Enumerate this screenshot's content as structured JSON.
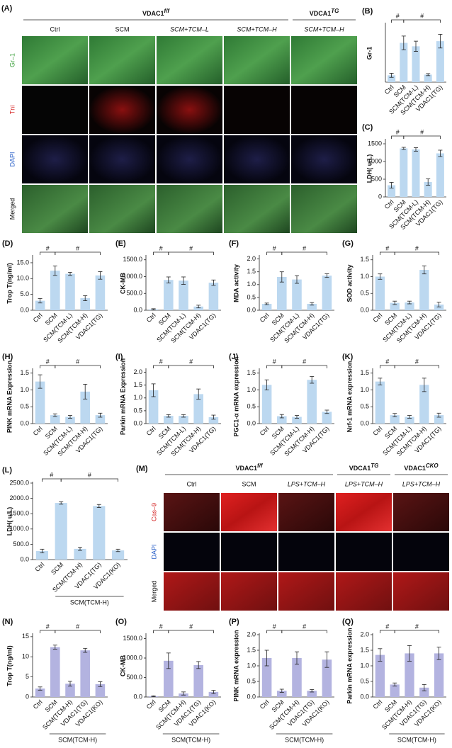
{
  "panels": [
    {
      "label": "(A)",
      "groups": [
        {
          "name": "VDAC1",
          "sup": "f/f"
        },
        {
          "name": "VDCA1",
          "sup": "TG"
        }
      ],
      "columns": [
        "Ctrl",
        "SCM",
        "SCM+TCM–L",
        "SCM+TCM–H",
        "SCM+TCM–H"
      ],
      "rows": [
        "Gr–1",
        "Tni",
        "DAPI",
        "Merged"
      ]
    },
    {
      "label": "(M)",
      "groups": [
        {
          "name": "VDAC1",
          "sup": "f/f"
        },
        {
          "name": "VDCA1",
          "sup": "TG"
        },
        {
          "name": "VDAC1",
          "sup": "CKO"
        }
      ],
      "columns": [
        "Ctrl",
        "SCM",
        "LPS+TCM–H",
        "LPS+TCM–H",
        "LPS+TCM–H"
      ],
      "rows": [
        "Cas–9",
        "DAPI",
        "Merged"
      ]
    }
  ],
  "chart_data": [
    {
      "type": "bar",
      "label": "(B)",
      "ylabel": "Gr-1",
      "categories": [
        "Ctrl",
        "SCM",
        "SCM(TCM-L)",
        "SCM(TCM-H)",
        "VDAC1(TG)"
      ],
      "values": [
        0.2,
        1.15,
        1.05,
        0.22,
        1.2
      ],
      "errors": [
        0.06,
        0.2,
        0.15,
        0.03,
        0.2
      ],
      "ylim": [
        0,
        1.7
      ],
      "annotations": [
        "#",
        "#"
      ],
      "color": "#bcd8f0"
    },
    {
      "type": "bar",
      "label": "(C)",
      "ylabel": "LDH( u/L)",
      "categories": [
        "Ctrl",
        "SCM",
        "SCM(TCM-L)",
        "SCM(TCM-H)",
        "VDAC1(TG)"
      ],
      "values": [
        330,
        1370,
        1340,
        420,
        1230
      ],
      "errors": [
        80,
        30,
        50,
        90,
        90
      ],
      "ylim": [
        0,
        1600
      ],
      "yticks": [
        0,
        500,
        1000,
        1500
      ],
      "annotations": [
        "#",
        "#"
      ],
      "color": "#bcd8f0"
    },
    {
      "type": "bar",
      "label": "(D)",
      "ylabel": "Trop T(ng/ml)",
      "categories": [
        "Ctrl",
        "SCM",
        "SCM(TCM-L)",
        "SCM(TCM-H)",
        "VDAC1(TG)"
      ],
      "values": [
        3,
        12.5,
        11.5,
        3.8,
        11
      ],
      "errors": [
        0.7,
        1.5,
        0.5,
        0.8,
        1.2
      ],
      "ylim": [
        0,
        17
      ],
      "yticks": [
        {
          "value": 0,
          "label": "0.0"
        },
        {
          "value": 5,
          "label": "5.0"
        },
        {
          "value": 10,
          "label": "10.0"
        },
        {
          "value": 15,
          "label": "15.0"
        }
      ],
      "annotations": [
        "#",
        "#"
      ],
      "color": "#bcd8f0"
    },
    {
      "type": "bar",
      "label": "(E)",
      "ylabel": "CK-MB",
      "categories": [
        "Ctrl",
        "SCM",
        "SCM(TCM-L)",
        "SCM(TCM-H)",
        "VDAC1(TG)"
      ],
      "values": [
        30,
        900,
        880,
        110,
        820
      ],
      "errors": [
        15,
        90,
        110,
        40,
        80
      ],
      "ylim": [
        0,
        1600
      ],
      "yticks": [
        {
          "value": 0,
          "label": "0.0"
        },
        {
          "value": 500,
          "label": "500.0"
        },
        {
          "value": 1000,
          "label": "1000.0"
        },
        {
          "value": 1500,
          "label": "1500.0"
        }
      ],
      "annotations": [
        "#",
        "#"
      ],
      "color": "#bcd8f0"
    },
    {
      "type": "bar",
      "label": "(F)",
      "ylabel": "MDA activity",
      "categories": [
        "Ctrl",
        "SCM",
        "SCM(TCM-L)",
        "SCM(TCM-H)",
        "VDAC1(TG)"
      ],
      "values": [
        0.25,
        1.3,
        1.2,
        0.25,
        1.35
      ],
      "errors": [
        0.03,
        0.2,
        0.15,
        0.05,
        0.07
      ],
      "ylim": [
        0,
        2.1
      ],
      "yticks": [
        {
          "value": 0,
          "label": "0.0"
        },
        0.5,
        {
          "value": 1,
          "label": "1.0"
        },
        1.5,
        {
          "value": 2,
          "label": "2.0"
        }
      ],
      "annotations": [
        "#",
        "#"
      ],
      "color": "#bcd8f0"
    },
    {
      "type": "bar",
      "label": "(G)",
      "ylabel": "SOD activity",
      "categories": [
        "Ctrl",
        "SCM",
        "SCM(TCM-L)",
        "SCM(TCM-H)",
        "VDAC1(TG)"
      ],
      "values": [
        1.0,
        0.22,
        0.23,
        1.2,
        0.17
      ],
      "errors": [
        0.08,
        0.05,
        0.04,
        0.12,
        0.07
      ],
      "ylim": [
        0,
        1.6
      ],
      "yticks": [
        {
          "value": 0,
          "label": "0.0"
        },
        0.5,
        {
          "value": 1,
          "label": "1.0"
        },
        1.5
      ],
      "annotations": [
        "#",
        "#"
      ],
      "color": "#bcd8f0"
    },
    {
      "type": "bar",
      "label": "(H)",
      "ylabel": "PINK mRNA Expression",
      "categories": [
        "Ctrl",
        "SCM",
        "SCM(TCM-L)",
        "SCM(TCM-H)",
        "VDAC1(TG)"
      ],
      "values": [
        1.25,
        0.25,
        0.2,
        0.95,
        0.25
      ],
      "errors": [
        0.2,
        0.04,
        0.04,
        0.22,
        0.06
      ],
      "ylim": [
        0,
        1.6
      ],
      "yticks": [
        {
          "value": 0,
          "label": "0.0"
        },
        0.5,
        {
          "value": 1,
          "label": "1.0"
        },
        1.5
      ],
      "annotations": [
        "#",
        "#"
      ],
      "color": "#bcd8f0"
    },
    {
      "type": "bar",
      "label": "(I)",
      "ylabel": "Parkin mRNA Expression",
      "categories": [
        "Ctrl",
        "SCM",
        "SCM(TCM-L)",
        "SCM(TCM-H)",
        "VDAC1(TG)"
      ],
      "values": [
        1.3,
        0.3,
        0.3,
        1.15,
        0.25
      ],
      "errors": [
        0.25,
        0.05,
        0.05,
        0.2,
        0.08
      ],
      "ylim": [
        0,
        2.1
      ],
      "yticks": [
        {
          "value": 0,
          "label": "0.0"
        },
        0.5,
        {
          "value": 1,
          "label": "1.0"
        },
        1.5,
        {
          "value": 2,
          "label": "2.0"
        }
      ],
      "annotations": [
        "#",
        "#"
      ],
      "color": "#bcd8f0"
    },
    {
      "type": "bar",
      "label": "(J)",
      "ylabel": "PGC1-α mRNA expression",
      "categories": [
        "Ctrl",
        "SCM",
        "SCM(TCM-L)",
        "SCM(TCM-H)",
        "VDAC1(TG)"
      ],
      "values": [
        1.15,
        0.22,
        0.2,
        1.3,
        0.35
      ],
      "errors": [
        0.15,
        0.05,
        0.04,
        0.1,
        0.05
      ],
      "ylim": [
        0,
        1.6
      ],
      "yticks": [
        {
          "value": 0,
          "label": "0.0"
        },
        0.5,
        {
          "value": 1,
          "label": "1.0"
        },
        1.5
      ],
      "annotations": [
        "#",
        "#"
      ],
      "color": "#bcd8f0"
    },
    {
      "type": "bar",
      "label": "(K)",
      "ylabel": "Nrf-1 mRNA expression",
      "categories": [
        "Ctrl",
        "SCM",
        "SCM(TCM-L)",
        "SCM(TCM-H)",
        "VDAC1(TG)"
      ],
      "values": [
        1.25,
        0.25,
        0.2,
        1.15,
        0.25
      ],
      "errors": [
        0.1,
        0.05,
        0.04,
        0.2,
        0.06
      ],
      "ylim": [
        0,
        1.6
      ],
      "yticks": [
        {
          "value": 0,
          "label": "0.0"
        },
        0.5,
        {
          "value": 1,
          "label": "1.0"
        },
        1.5
      ],
      "annotations": [
        "#",
        "#"
      ],
      "color": "#bcd8f0"
    },
    {
      "type": "bar",
      "label": "(L)",
      "ylabel": "LDH( u/L)",
      "categories": [
        "Ctrl",
        "SCM",
        "SCM(TCM-H)",
        "VDAC1(TG)",
        "VDAC1(KO)"
      ],
      "group_label": "SCM(TCM-H)",
      "values": [
        280,
        1850,
        350,
        1750,
        300
      ],
      "errors": [
        60,
        40,
        50,
        50,
        40
      ],
      "ylim": [
        0,
        2500
      ],
      "yticks": [
        {
          "value": 0,
          "label": "0.0"
        },
        {
          "value": 500,
          "label": "500.0"
        },
        {
          "value": 1000,
          "label": "1000.0"
        },
        {
          "value": 1500,
          "label": "1500.0"
        },
        {
          "value": 2000,
          "label": "2000.0"
        },
        {
          "value": 2500,
          "label": "2500.0"
        }
      ],
      "annotations": [
        "#",
        "#"
      ],
      "color": "#bcd8f0"
    },
    {
      "type": "bar",
      "label": "(N)",
      "ylabel": "Trop T(ng/ml)",
      "categories": [
        "Ctrl",
        "SCM",
        "SCM(TCM-H)",
        "VDAC1(TG)",
        "VDAC1(KO)"
      ],
      "group_label": "SCM(TCM-H)",
      "values": [
        2.1,
        12.4,
        3.3,
        11.6,
        3.2
      ],
      "errors": [
        0.4,
        0.5,
        0.6,
        0.5,
        0.6
      ],
      "ylim": [
        0,
        15.5
      ],
      "yticks": [
        0,
        5,
        10,
        15
      ],
      "annotations": [
        "#",
        "#"
      ],
      "color": "#b3b3e0"
    },
    {
      "type": "bar",
      "label": "(O)",
      "ylabel": "CK-MB",
      "categories": [
        "Ctrl",
        "SCM",
        "SCM(TCM-H)",
        "VDAC1(TG)",
        "VDAC1(KO)"
      ],
      "group_label": "SCM(TCM-H)",
      "values": [
        20,
        930,
        90,
        820,
        130
      ],
      "errors": [
        10,
        200,
        40,
        90,
        40
      ],
      "ylim": [
        0,
        1600
      ],
      "yticks": [
        {
          "value": 0,
          "label": "0.0"
        },
        {
          "value": 500,
          "label": "500.0"
        },
        {
          "value": 1000,
          "label": "1000.0"
        },
        {
          "value": 1500,
          "label": "1500.0"
        }
      ],
      "annotations": [
        "#",
        "#"
      ],
      "color": "#b3b3e0"
    },
    {
      "type": "bar",
      "label": "(P)",
      "ylabel": "PINK mRNA expression",
      "categories": [
        "Ctrl",
        "SCM",
        "SCM(TCM-H)",
        "VDAC1(TG)",
        "VDAC1(KO)"
      ],
      "group_label": "SCM(TCM-H)",
      "values": [
        1.25,
        0.2,
        1.25,
        0.2,
        1.2
      ],
      "errors": [
        0.25,
        0.05,
        0.2,
        0.04,
        0.25
      ],
      "ylim": [
        0,
        2.0
      ],
      "yticks": [
        {
          "value": 0,
          "label": "0.0"
        },
        0.5,
        {
          "value": 1,
          "label": "1.0"
        },
        1.5,
        {
          "value": 2,
          "label": "2.0"
        }
      ],
      "annotations": [
        "#",
        "#"
      ],
      "color": "#b3b3e0"
    },
    {
      "type": "bar",
      "label": "(Q)",
      "ylabel": "Parkin mRNA expression",
      "categories": [
        "Ctrl",
        "SCM",
        "SCM(TCM-H)",
        "VDAC1(TG)",
        "VDAC1(KO)"
      ],
      "group_label": "SCM(TCM-H)",
      "values": [
        1.35,
        0.4,
        1.4,
        0.3,
        1.4
      ],
      "errors": [
        0.2,
        0.05,
        0.25,
        0.1,
        0.2
      ],
      "ylim": [
        0,
        2.0
      ],
      "yticks": [
        {
          "value": 0,
          "label": "0.0"
        },
        0.5,
        {
          "value": 1,
          "label": "1.0"
        },
        1.5,
        {
          "value": 2,
          "label": "2.0"
        }
      ],
      "annotations": [
        "#",
        "#"
      ],
      "color": "#b3b3e0"
    }
  ]
}
